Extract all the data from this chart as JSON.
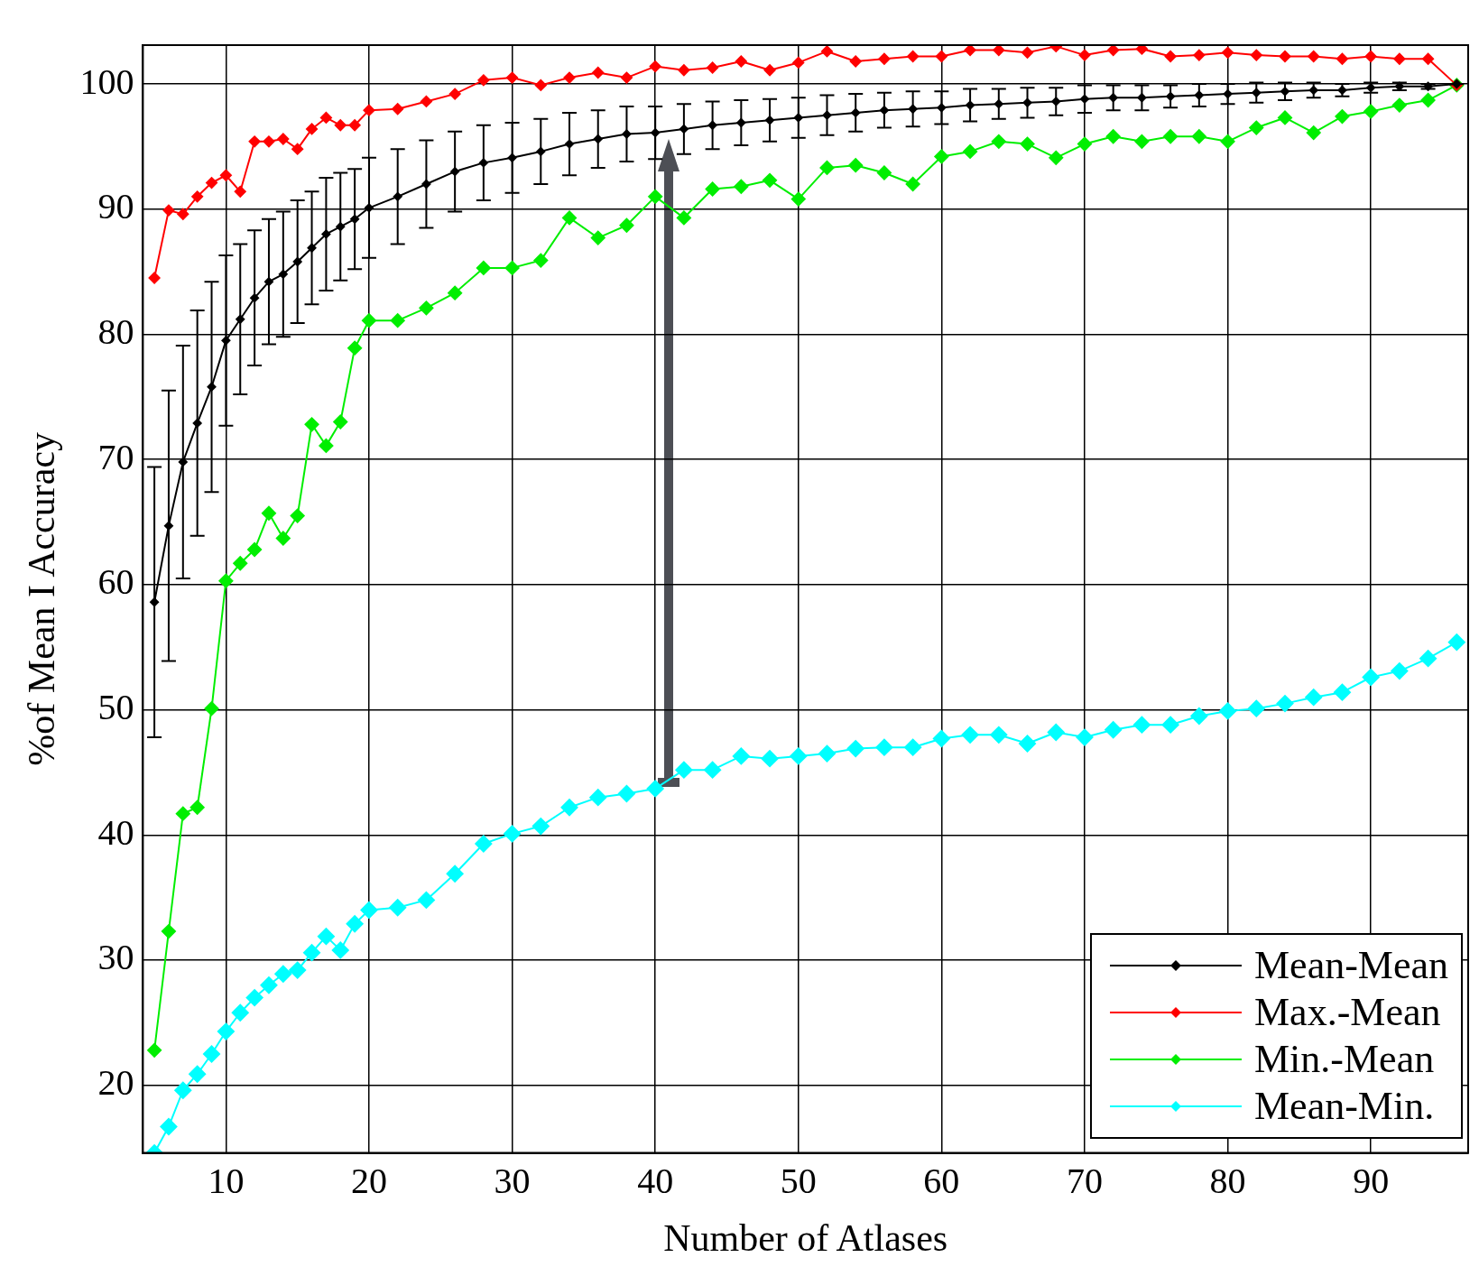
{
  "chart_data": {
    "type": "line",
    "xlabel": "Number of Atlases",
    "ylabel": "%of Mean I Accuracy",
    "x": [
      5,
      6,
      7,
      8,
      9,
      10,
      11,
      12,
      13,
      14,
      15,
      16,
      17,
      18,
      19,
      20,
      22,
      24,
      26,
      28,
      30,
      32,
      34,
      36,
      38,
      40,
      42,
      44,
      46,
      48,
      50,
      52,
      54,
      56,
      58,
      60,
      62,
      64,
      66,
      68,
      70,
      72,
      74,
      76,
      78,
      80,
      82,
      84,
      86,
      88,
      90,
      92,
      94,
      96
    ],
    "series": [
      {
        "name": "Mean-Mean",
        "color": "#000000",
        "values": [
          58.6,
          64.7,
          69.8,
          72.9,
          75.8,
          79.5,
          81.2,
          82.9,
          84.2,
          84.8,
          85.8,
          86.9,
          88,
          88.6,
          89.2,
          90.1,
          91,
          92,
          93,
          93.7,
          94.1,
          94.6,
          95.2,
          95.6,
          96,
          96.1,
          96.4,
          96.7,
          96.9,
          97.1,
          97.3,
          97.5,
          97.7,
          97.9,
          98,
          98.1,
          98.3,
          98.4,
          98.5,
          98.6,
          98.8,
          98.9,
          98.9,
          99,
          99.1,
          99.2,
          99.3,
          99.4,
          99.5,
          99.5,
          99.7,
          99.8,
          99.8,
          100
        ],
        "errors": [
          10.8,
          10.8,
          9.3,
          9,
          8.4,
          6.8,
          6,
          5.4,
          5,
          5,
          4.9,
          4.5,
          4.5,
          4.3,
          4,
          4,
          3.8,
          3.5,
          3.2,
          3,
          2.8,
          2.6,
          2.5,
          2.3,
          2.2,
          2.1,
          2,
          1.9,
          1.8,
          1.7,
          1.6,
          1.6,
          1.5,
          1.4,
          1.4,
          1.3,
          1.3,
          1.2,
          1.2,
          1.1,
          1.1,
          1,
          1,
          0.9,
          0.9,
          0.8,
          0.8,
          0.7,
          0.6,
          0.5,
          0.4,
          0.3,
          0.2,
          0
        ]
      },
      {
        "name": "Max.-Mean",
        "color": "#ff0000",
        "values": [
          84.5,
          89.9,
          89.6,
          91,
          92.1,
          92.7,
          91.4,
          95.4,
          95.4,
          95.6,
          94.8,
          96.4,
          97.3,
          96.7,
          96.7,
          97.9,
          98,
          98.6,
          99.2,
          100.3,
          100.5,
          99.9,
          100.5,
          100.9,
          100.5,
          101.4,
          101.1,
          101.3,
          101.8,
          101.1,
          101.7,
          102.6,
          101.8,
          102,
          102.2,
          102.2,
          102.7,
          102.7,
          102.5,
          103,
          102.3,
          102.7,
          102.8,
          102.2,
          102.3,
          102.5,
          102.3,
          102.2,
          102.2,
          102,
          102.2,
          102,
          102,
          99.9
        ]
      },
      {
        "name": "Min.-Mean",
        "color": "#00ee00",
        "values": [
          22.8,
          32.3,
          41.7,
          42.2,
          50.1,
          60.3,
          61.7,
          62.8,
          65.7,
          63.7,
          65.5,
          72.8,
          71.1,
          73,
          78.9,
          81.1,
          81.1,
          82.1,
          83.3,
          85.3,
          85.3,
          85.9,
          89.3,
          87.7,
          88.7,
          91,
          89.3,
          91.6,
          91.8,
          92.3,
          90.8,
          93.3,
          93.5,
          92.9,
          92,
          94.2,
          94.6,
          95.4,
          95.2,
          94.1,
          95.2,
          95.8,
          95.4,
          95.8,
          95.8,
          95.4,
          96.5,
          97.3,
          96.1,
          97.4,
          97.8,
          98.3,
          98.7,
          99.9
        ]
      },
      {
        "name": "Mean-Min.",
        "color": "#00ffff",
        "values": [
          14.6,
          16.7,
          19.6,
          20.9,
          22.5,
          24.3,
          25.8,
          27,
          28,
          28.9,
          29.2,
          30.6,
          31.9,
          30.8,
          32.9,
          34,
          34.2,
          34.8,
          36.9,
          39.3,
          40.1,
          40.7,
          42.2,
          43,
          43.3,
          43.7,
          45.2,
          45.2,
          46.3,
          46.1,
          46.3,
          46.5,
          46.9,
          47,
          47,
          47.7,
          48,
          48,
          47.3,
          48.2,
          47.8,
          48.4,
          48.8,
          48.8,
          49.5,
          49.9,
          50.1,
          50.5,
          51,
          51.4,
          52.6,
          53.1,
          54.1,
          55.4
        ]
      }
    ],
    "xlim": [
      4.2,
      96.8
    ],
    "xticks": [
      10,
      20,
      30,
      40,
      50,
      60,
      70,
      80,
      90
    ],
    "ylim": [
      14.6,
      103.1
    ],
    "yticks": [
      20,
      30,
      40,
      50,
      60,
      70,
      80,
      90,
      100
    ],
    "grid": true,
    "legend": "bottom right",
    "marker": "diamond",
    "line_style": "solid"
  }
}
